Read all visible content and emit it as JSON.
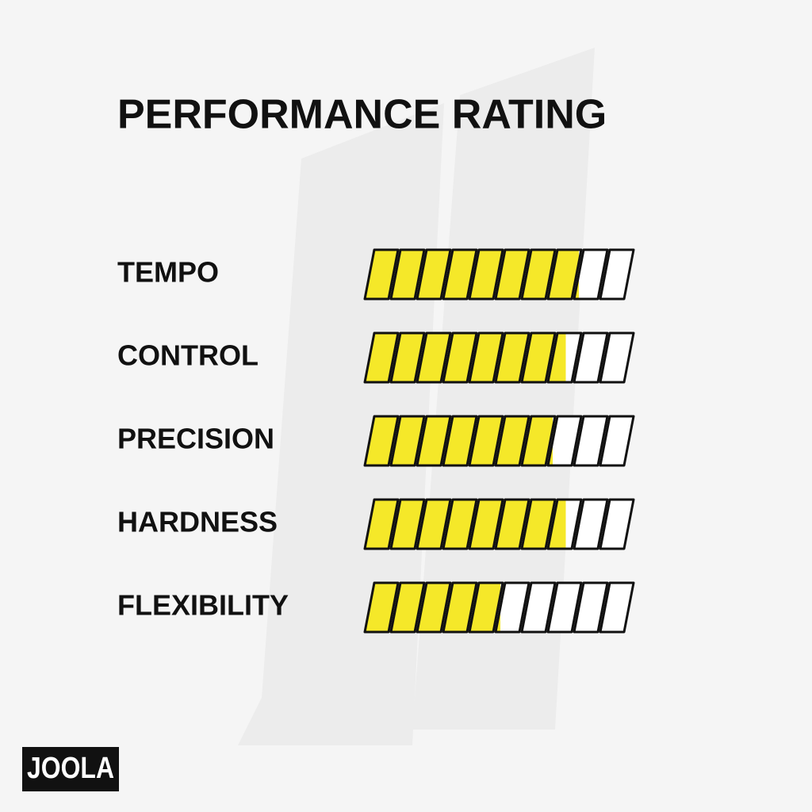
{
  "chart_data": {
    "type": "rating",
    "title": "PERFORMANCE RATING",
    "categories": [
      "TEMPO",
      "CONTROL",
      "PRECISION",
      "HARDNESS",
      "FLEXIBILITY"
    ],
    "values": [
      8,
      7.5,
      7,
      7.5,
      5
    ],
    "xlim": [
      0,
      10
    ],
    "color": "#f5e829"
  },
  "brand": "JOOLA"
}
